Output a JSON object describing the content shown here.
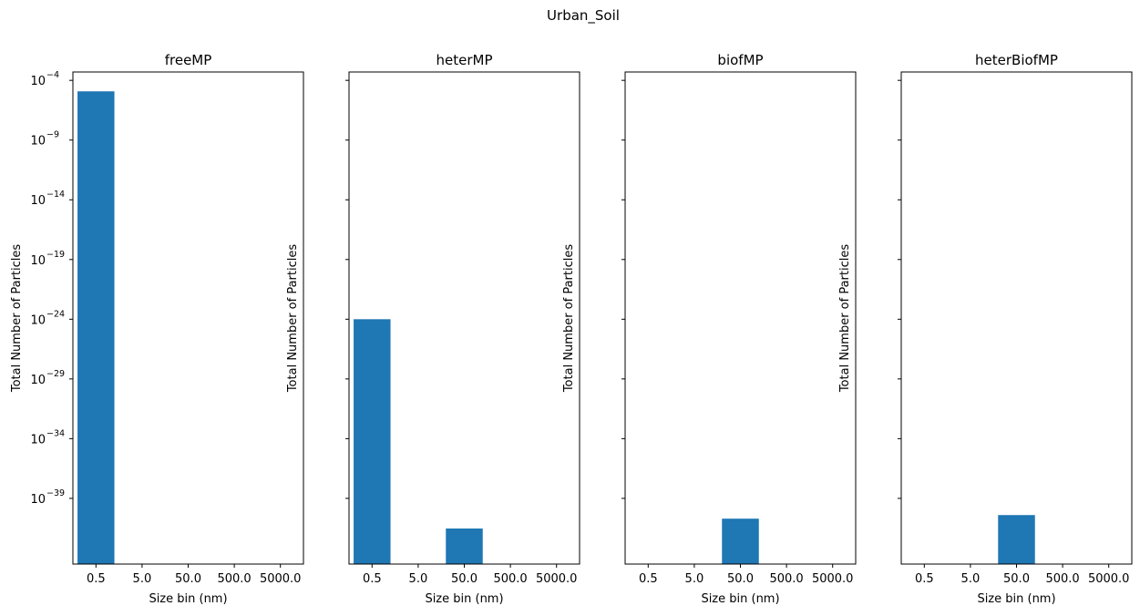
{
  "figure_title": "Urban_Soil",
  "colors": {
    "bar": "#1f77b4",
    "axis": "#000000",
    "background": "#ffffff"
  },
  "chart_data": [
    {
      "type": "bar",
      "title": "freeMP",
      "xlabel": "Size bin (nm)",
      "ylabel": "Total Number of Particles",
      "yscale": "log",
      "categories": [
        "0.5",
        "5.0",
        "50.0",
        "500.0",
        "5000.0"
      ],
      "values": [
        1.2e-05,
        0,
        0,
        0,
        0
      ],
      "ylim_exponent": [
        -44.5,
        -3.3
      ],
      "yticks_exponent": [
        -4,
        -9,
        -14,
        -19,
        -24,
        -29,
        -34,
        -39
      ],
      "show_ytick_labels": true
    },
    {
      "type": "bar",
      "title": "heterMP",
      "xlabel": "Size bin (nm)",
      "ylabel": "Total Number of Particles",
      "yscale": "log",
      "categories": [
        "0.5",
        "5.0",
        "50.0",
        "500.0",
        "5000.0"
      ],
      "values": [
        1e-24,
        0,
        3e-42,
        0,
        0
      ],
      "ylim_exponent": [
        -44.5,
        -3.3
      ],
      "yticks_exponent": [
        -4,
        -9,
        -14,
        -19,
        -24,
        -29,
        -34,
        -39
      ],
      "show_ytick_labels": false
    },
    {
      "type": "bar",
      "title": "biofMP",
      "xlabel": "Size bin (nm)",
      "ylabel": "Total Number of Particles",
      "yscale": "log",
      "categories": [
        "0.5",
        "5.0",
        "50.0",
        "500.0",
        "5000.0"
      ],
      "values": [
        0,
        0,
        2e-41,
        0,
        0
      ],
      "ylim_exponent": [
        -44.5,
        -3.3
      ],
      "yticks_exponent": [
        -4,
        -9,
        -14,
        -19,
        -24,
        -29,
        -34,
        -39
      ],
      "show_ytick_labels": false
    },
    {
      "type": "bar",
      "title": "heterBiofMP",
      "xlabel": "Size bin (nm)",
      "ylabel": "Total Number of Particles",
      "yscale": "log",
      "categories": [
        "0.5",
        "5.0",
        "50.0",
        "500.0",
        "5000.0"
      ],
      "values": [
        0,
        0,
        4e-41,
        0,
        0
      ],
      "ylim_exponent": [
        -44.5,
        -3.3
      ],
      "yticks_exponent": [
        -4,
        -9,
        -14,
        -19,
        -24,
        -29,
        -34,
        -39
      ],
      "show_ytick_labels": false
    }
  ]
}
